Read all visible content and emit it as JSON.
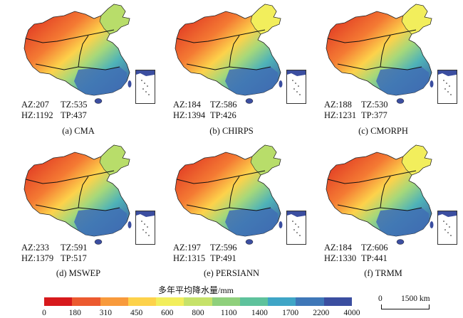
{
  "panels": [
    {
      "caption": "(a) CMA",
      "az": "AZ:207",
      "tz": "TZ:535",
      "hz": "HZ:1192",
      "tp": "TP:437"
    },
    {
      "caption": "(b) CHIRPS",
      "az": "AZ:184",
      "tz": "TZ:586",
      "hz": "HZ:1394",
      "tp": "TP:426"
    },
    {
      "caption": "(c) CMORPH",
      "az": "AZ:188",
      "tz": "TZ:530",
      "hz": "HZ:1231",
      "tp": "TP:377"
    },
    {
      "caption": "(d) MSWEP",
      "az": "AZ:233",
      "tz": "TZ:591",
      "hz": "HZ:1379",
      "tp": "TP:517"
    },
    {
      "caption": "(e) PERSIANN",
      "az": "AZ:197",
      "tz": "TZ:596",
      "hz": "HZ:1315",
      "tp": "TP:491"
    },
    {
      "caption": "(f) TRMM",
      "az": "AZ:184",
      "tz": "TZ:606",
      "hz": "HZ:1330",
      "tp": "TP:441"
    }
  ],
  "legend": {
    "title": "多年平均降水量/mm",
    "ticks": [
      "0",
      "180",
      "310",
      "450",
      "600",
      "800",
      "1100",
      "1400",
      "1700",
      "2200",
      "4000"
    ],
    "colors": [
      "#d7191c",
      "#ec5a2f",
      "#f89a3c",
      "#fdd24b",
      "#f2ee5c",
      "#c6e26a",
      "#8fd07c",
      "#5ec29c",
      "#3fa5c6",
      "#3f77b8",
      "#3b4ea0"
    ]
  },
  "scale_bar": {
    "zero": "0",
    "length": "1500 km"
  }
}
